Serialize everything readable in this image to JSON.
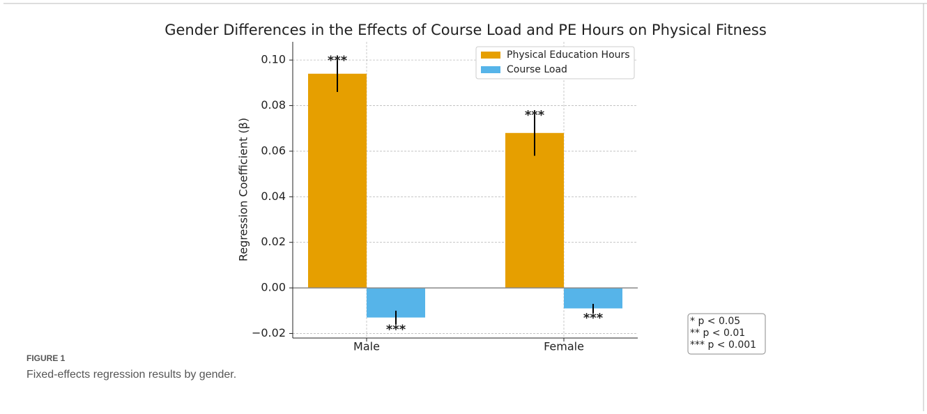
{
  "chart_data": {
    "type": "bar",
    "title": "Gender Differences in the Effects of Course Load and PE Hours on Physical Fitness",
    "ylabel": "Regression Coefficient (β)",
    "categories": [
      "Male",
      "Female"
    ],
    "series": [
      {
        "name": "Physical Education Hours",
        "color": "#e69f00",
        "values": [
          0.094,
          0.068
        ],
        "errors": [
          0.008,
          0.01
        ],
        "significance": [
          "***",
          "***"
        ]
      },
      {
        "name": "Course Load",
        "color": "#56b4e9",
        "values": [
          -0.013,
          -0.009
        ],
        "errors": [
          0.003,
          0.002
        ],
        "significance": [
          "***",
          "***"
        ]
      }
    ],
    "ylim": [
      -0.022,
      0.108
    ],
    "yticks": [
      {
        "value": -0.02,
        "label": "−0.02"
      },
      {
        "value": 0,
        "label": "0.00"
      },
      0.02,
      0.04,
      0.06,
      0.08,
      {
        "value": 0.1,
        "label": "0.10"
      }
    ],
    "grid": true,
    "legend": "upper right",
    "notes": [
      "* p < 0.05",
      "** p < 0.01",
      "*** p < 0.001"
    ]
  },
  "caption": {
    "label": "FIGURE 1",
    "text": "Fixed-effects regression results by gender."
  }
}
